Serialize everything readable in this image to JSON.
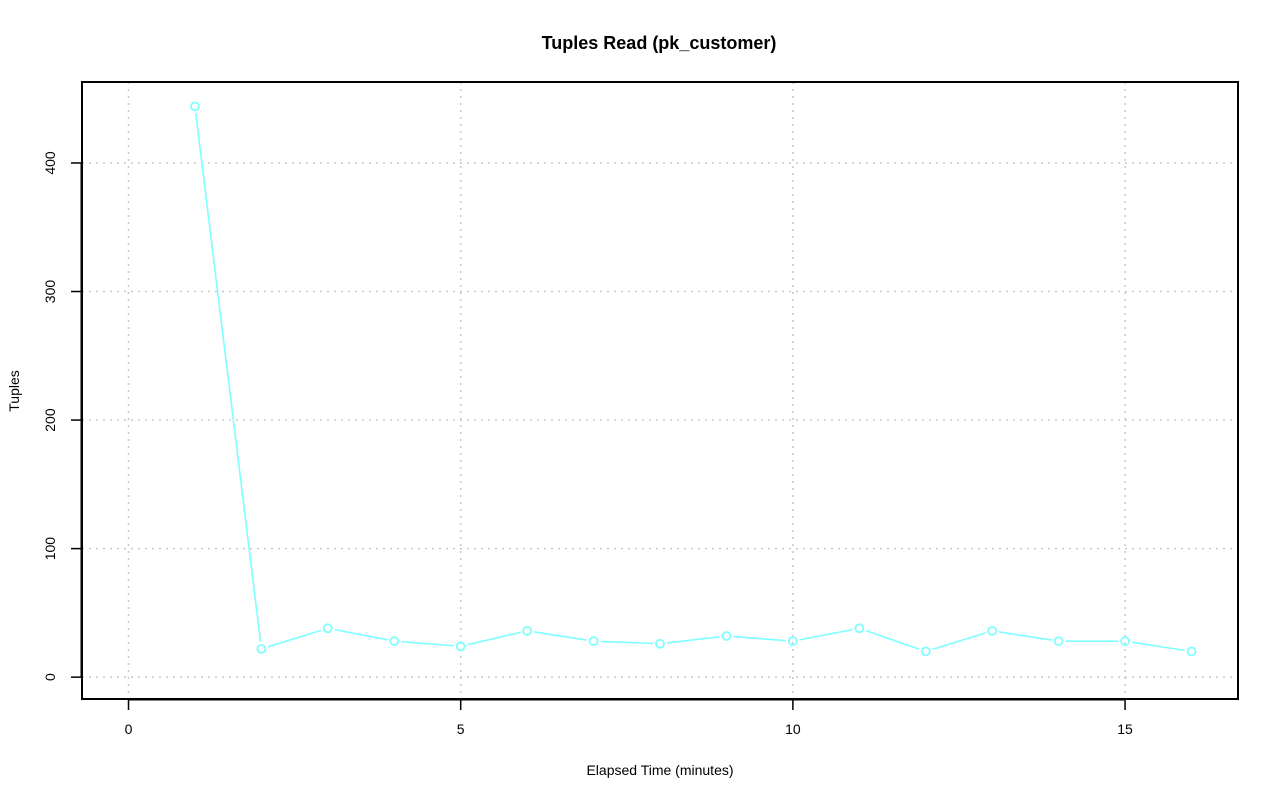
{
  "chart_data": {
    "type": "line",
    "title": "Tuples Read (pk_customer)",
    "xlabel": "Elapsed Time (minutes)",
    "ylabel": "Tuples",
    "xlim": [
      -0.7,
      16.7
    ],
    "ylim": [
      -17,
      463
    ],
    "x_ticks": [
      0,
      5,
      10,
      15
    ],
    "y_ticks": [
      0,
      100,
      200,
      300,
      400
    ],
    "grid": true,
    "legend": "none",
    "series": [
      {
        "color": "#7fffff",
        "x": [
          1,
          2,
          3,
          4,
          5,
          6,
          7,
          8,
          9,
          10,
          11,
          12,
          13,
          14,
          15,
          16
        ],
        "y": [
          444,
          22,
          38,
          28,
          24,
          36,
          28,
          26,
          32,
          28,
          38,
          20,
          36,
          28,
          28,
          20
        ]
      }
    ]
  }
}
